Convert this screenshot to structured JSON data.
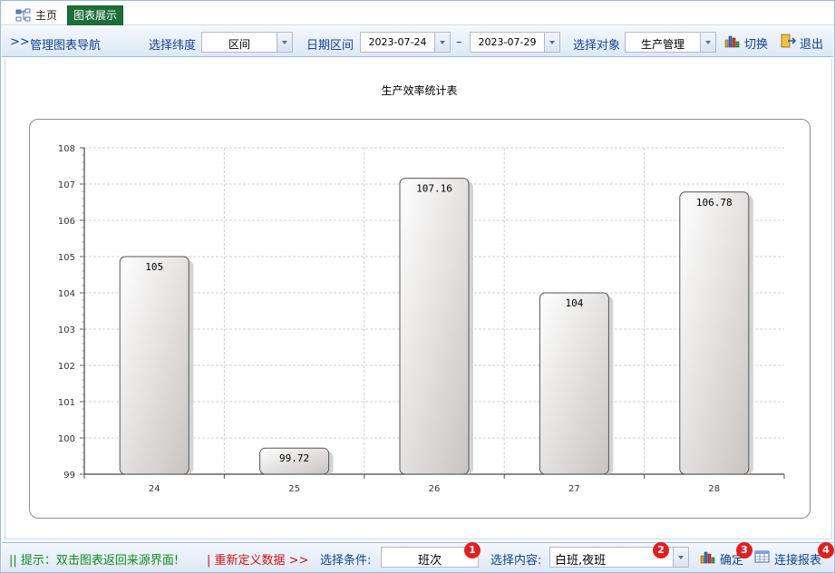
{
  "tabs": {
    "home": "主页",
    "active": "图表展示"
  },
  "toolbar": {
    "nav_prefix": ">>",
    "nav_title": "管理图表导航",
    "dimension_label": "选择纬度",
    "dimension_value": "区间",
    "date_label": "日期区间",
    "date_start": "2023-07-24",
    "date_separator": "–",
    "date_end": "2023-07-29",
    "target_label": "选择对象",
    "target_value": "生产管理",
    "switch_label": "切换",
    "exit_label": "退出"
  },
  "chart_data": {
    "type": "bar",
    "title": "生产效率统计表",
    "categories": [
      "24",
      "25",
      "26",
      "27",
      "28"
    ],
    "values": [
      105,
      99.72,
      107.16,
      104,
      106.78
    ],
    "data_labels": [
      "105",
      "99.72",
      "107.16",
      "104",
      "106.78"
    ],
    "ylim": [
      99,
      108
    ],
    "yticks": [
      99,
      100,
      101,
      102,
      103,
      104,
      105,
      106,
      107,
      108
    ],
    "xlabel": "",
    "ylabel": "",
    "grid": true,
    "bar_color": "#e8e6e4"
  },
  "bottombar": {
    "hint": "|| 提示：双击图表返回来源界面!",
    "redefine": "| 重新定义数据 >>",
    "condition_label": "选择条件:",
    "condition_value": "班次",
    "content_label": "选择内容:",
    "content_value": "白班,夜班",
    "confirm_label": "确定",
    "report_label": "连接报表",
    "badges": [
      "1",
      "2",
      "3",
      "4"
    ]
  },
  "colors": {
    "accent": "#15428b",
    "active_tab": "#1e6e3a",
    "hint": "#138a1e",
    "redefine": "#cc1111",
    "badge": "#e02020"
  }
}
